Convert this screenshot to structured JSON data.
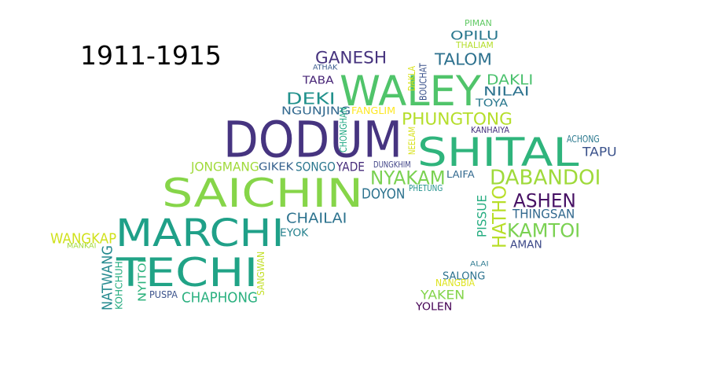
{
  "period_label": "1911-1915",
  "words": [
    {
      "text": "DODUM",
      "color": "#463480"
    },
    {
      "text": "SHITAL",
      "color": "#2fb47c"
    },
    {
      "text": "WALEY",
      "color": "#50c46a"
    },
    {
      "text": "SAICHIN",
      "color": "#86d549"
    },
    {
      "text": "MARCHI",
      "color": "#1fa088"
    },
    {
      "text": "TECHI",
      "color": "#20a386"
    },
    {
      "text": "GANESH",
      "color": "#46337e"
    },
    {
      "text": "TALOM",
      "color": "#2d718e"
    },
    {
      "text": "OPILU",
      "color": "#2a788e"
    },
    {
      "text": "PIMAN",
      "color": "#5ec962"
    },
    {
      "text": "THALIAM",
      "color": "#b5de2b"
    },
    {
      "text": "ATHAK",
      "color": "#38598c"
    },
    {
      "text": "TABA",
      "color": "#482677"
    },
    {
      "text": "DEKI",
      "color": "#21918c"
    },
    {
      "text": "NGUNJING",
      "color": "#31688e"
    },
    {
      "text": "FANGLIM",
      "color": "#fde725"
    },
    {
      "text": "DAKLA",
      "color": "#d8e219"
    },
    {
      "text": "BOUCHAT",
      "color": "#3b528b"
    },
    {
      "text": "DAKLI",
      "color": "#4ac16d"
    },
    {
      "text": "NILAI",
      "color": "#2c728e"
    },
    {
      "text": "TOYA",
      "color": "#2a788e"
    },
    {
      "text": "PHUNGTONG",
      "color": "#b5de2b"
    },
    {
      "text": "CHONGHAN",
      "color": "#22a884"
    },
    {
      "text": "NEELAM",
      "color": "#d8e219"
    },
    {
      "text": "KANHAIYA",
      "color": "#46327e"
    },
    {
      "text": "ACHONG",
      "color": "#2a788e"
    },
    {
      "text": "TAPU",
      "color": "#3b528b"
    },
    {
      "text": "JONGMANG",
      "color": "#a0da39"
    },
    {
      "text": "GIKEK",
      "color": "#35608d"
    },
    {
      "text": "SONGO",
      "color": "#2a768e"
    },
    {
      "text": "YADE",
      "color": "#472d7b"
    },
    {
      "text": "DUNGKHIM",
      "color": "#414487"
    },
    {
      "text": "LAIFA",
      "color": "#31688e"
    },
    {
      "text": "NYAKAM",
      "color": "#7ad151"
    },
    {
      "text": "DABANDOI",
      "color": "#9fda3a"
    },
    {
      "text": "DOYON",
      "color": "#2c728e"
    },
    {
      "text": "PHETUNG",
      "color": "#21918c"
    },
    {
      "text": "ASHEN",
      "color": "#471164"
    },
    {
      "text": "THINGSAN",
      "color": "#31688e"
    },
    {
      "text": "HATHO",
      "color": "#b8de29"
    },
    {
      "text": "PISSUE",
      "color": "#26ad81"
    },
    {
      "text": "KAMTOI",
      "color": "#7ad151"
    },
    {
      "text": "AMAN",
      "color": "#3e4a89"
    },
    {
      "text": "CHAILAI",
      "color": "#2c728e"
    },
    {
      "text": "EYOK",
      "color": "#26828e"
    },
    {
      "text": "WANGKAP",
      "color": "#d0e11c"
    },
    {
      "text": "MANKAI",
      "color": "#a2da37"
    },
    {
      "text": "NATWANG",
      "color": "#23898e"
    },
    {
      "text": "KOHCHUH",
      "color": "#27ad81"
    },
    {
      "text": "NYITOI",
      "color": "#2db27d"
    },
    {
      "text": "PUSPA",
      "color": "#3b528b"
    },
    {
      "text": "CHAPHONG",
      "color": "#2ab07f"
    },
    {
      "text": "SANGWAN",
      "color": "#c2df23"
    },
    {
      "text": "ALAI",
      "color": "#2a788e"
    },
    {
      "text": "SALONG",
      "color": "#2c728e"
    },
    {
      "text": "NANGBIA",
      "color": "#dde318"
    },
    {
      "text": "YAKEN",
      "color": "#84d44b"
    },
    {
      "text": "YOLEN",
      "color": "#440154"
    }
  ]
}
